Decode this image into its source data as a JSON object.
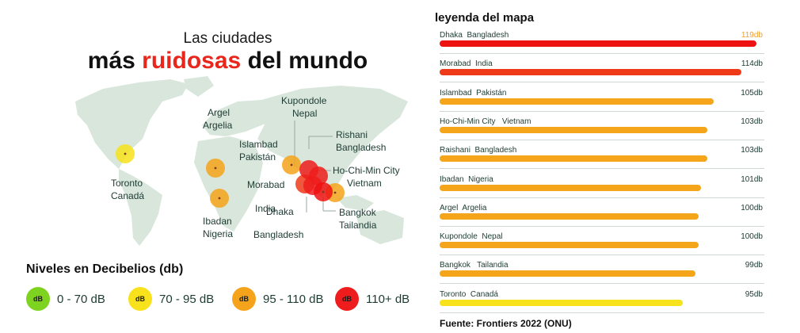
{
  "title": {
    "sub": "Las ciudades",
    "main_pre": "más",
    "main_hl": "ruidosas",
    "main_post": "del mundo"
  },
  "map": {
    "labels": {
      "toronto_city": "Toronto",
      "toronto_country": "Canadá",
      "argel_city": "Argel",
      "argel_country": "Argelia",
      "ibadan_city": "Ibadan",
      "ibadan_country": "Nigeria",
      "islambad_city": "Islambad",
      "islambad_country": "Pakistán",
      "kupondole_city": "Kupondole",
      "kupondole_country": "Nepal",
      "rishani_city": "Rishani",
      "rishani_country": "Bangladesh",
      "hochiminh_city": "Ho-Chi-Min City",
      "hochiminh_country": "Vietnam",
      "morabad_label": "Morabad",
      "india_label": "India",
      "dhaka_label": "Dhaka",
      "bangladesh_label": "Bangladesh",
      "bangkok_city": "Bangkok",
      "bangkok_country": "Tailandia"
    }
  },
  "levels": {
    "title": "Niveles en Decibelios (db)",
    "badge_text": "dB",
    "items": [
      {
        "label": "0 - 70 dB",
        "color": "#7ed321"
      },
      {
        "label": "70 -  95 dB",
        "color": "#f7e21b"
      },
      {
        "label": "95 - 110 dB",
        "color": "#f5a31a"
      },
      {
        "label": "110+ dB",
        "color": "#ee1c1c"
      }
    ]
  },
  "legend_title": "leyenda del mapa",
  "source": "Fuente: Frontiers 2022 (ONU)",
  "chart_data": {
    "type": "bar",
    "title": "leyenda del mapa",
    "unit": "db",
    "categories": [
      "Dhaka  Bangladesh",
      "Morabad  India",
      "Islambad  Pakistán",
      "Ho-Chi-Min City   Vietnam",
      "Raishani  Bangladesh",
      "Ibadan  Nigeria",
      "Argel  Argelia",
      "Kupondole  Nepal",
      "Bangkok   Tailandia",
      "Toronto  Canadá"
    ],
    "values": [
      119,
      114,
      105,
      103,
      103,
      101,
      100,
      100,
      99,
      95
    ],
    "value_labels": [
      "119db",
      "114db",
      "105db",
      "103db",
      "103db",
      "101db",
      "100db",
      "100db",
      "99db",
      "95db"
    ],
    "colors": [
      "#ee1111",
      "#ef3a1a",
      "#f5a51a",
      "#f5a51a",
      "#f5a51a",
      "#f5a51a",
      "#f5a51a",
      "#f5a51a",
      "#f5a51a",
      "#f7e21b"
    ],
    "highlight_value_color": "#f0a030"
  }
}
